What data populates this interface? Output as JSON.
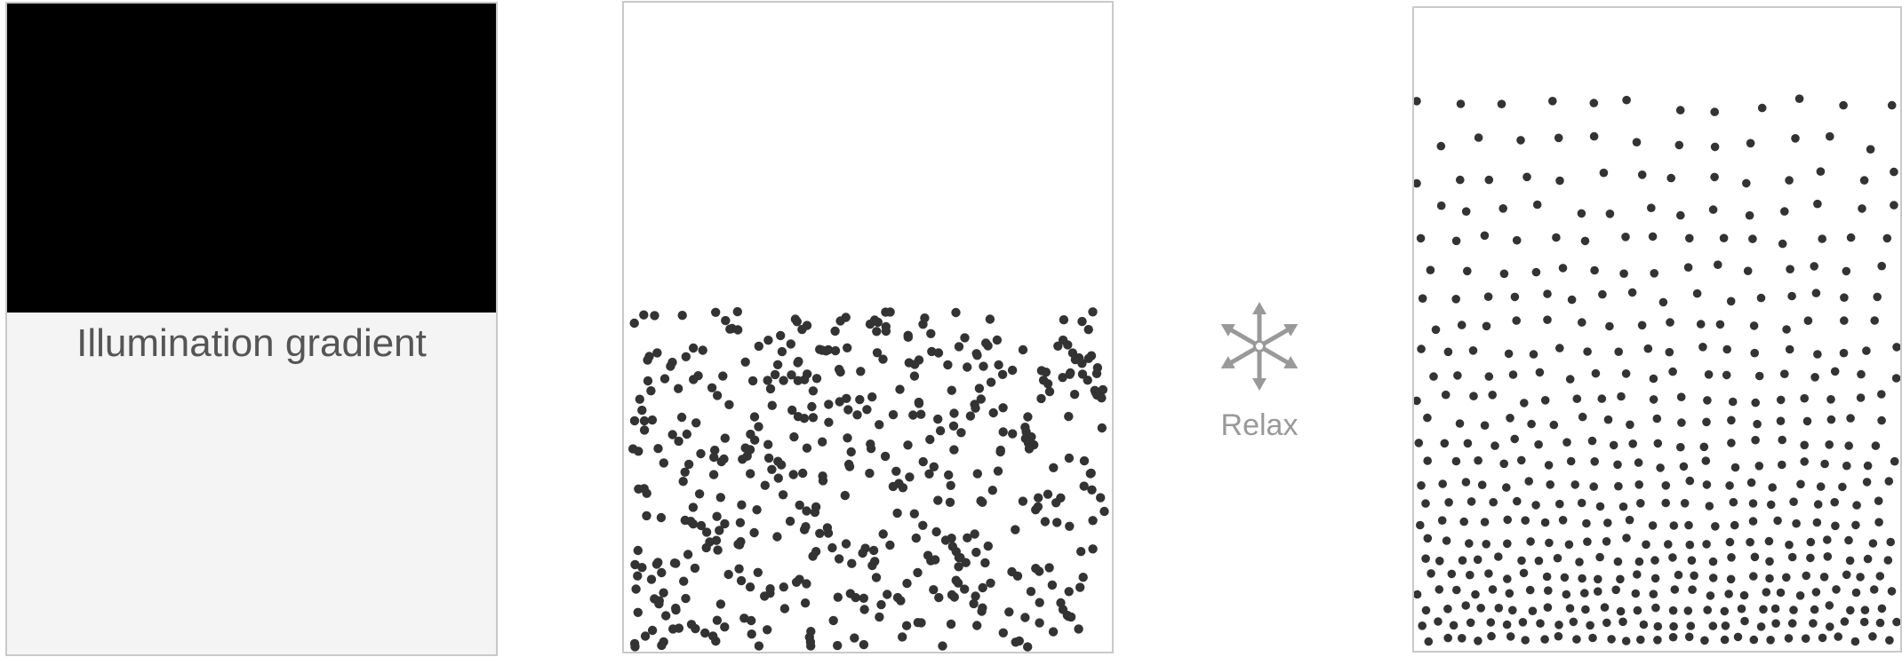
{
  "panels": {
    "gradient": {
      "label": "Illumination gradient",
      "band_color": "#000000",
      "background": "#f4f4f4"
    },
    "random": {
      "dot_color": "#333333",
      "dot_count": 480
    },
    "relaxed": {
      "dot_color": "#333333"
    }
  },
  "relax": {
    "label": "Relax",
    "icon": "six-arrow-burst-icon",
    "color": "#999999"
  }
}
